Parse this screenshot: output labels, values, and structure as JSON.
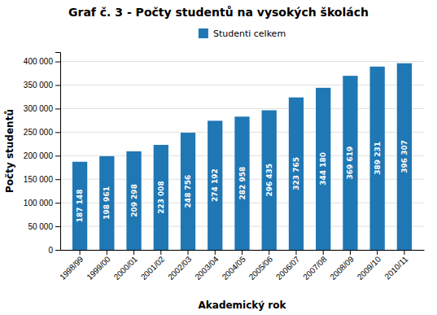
{
  "chart_data": {
    "type": "bar",
    "title": "Graf č. 3 - Počty studentů na vysokých školách",
    "x_label": "Akademický rok",
    "y_label": "Počty studentů",
    "categories": [
      "1998/99",
      "1999/00",
      "2000/01",
      "2001/02",
      "2002/03",
      "2003/04",
      "2004/05",
      "2005/06",
      "2006/07",
      "2007/08",
      "2008/09",
      "2009/10",
      "2010/11"
    ],
    "series": [
      {
        "name": "Studenti celkem",
        "values": [
          187148,
          198961,
          209298,
          223008,
          248756,
          274192,
          282958,
          296435,
          323765,
          344180,
          369619,
          389231,
          396307
        ],
        "value_labels": [
          "187 148",
          "198 961",
          "209 298",
          "223 008",
          "248 756",
          "274 192",
          "282 958",
          "296 435",
          "323 765",
          "344 180",
          "369 619",
          "389 231",
          "396 307"
        ]
      }
    ],
    "ylim": [
      0,
      420000
    ],
    "yticks": [
      0,
      {
        "value": 50000,
        "label": "50 000"
      },
      {
        "value": 100000,
        "label": "100 000"
      },
      {
        "value": 150000,
        "label": "150 000"
      },
      {
        "value": 200000,
        "label": "200 000"
      },
      {
        "value": 250000,
        "label": "250 000"
      },
      {
        "value": 300000,
        "label": "300 000"
      },
      {
        "value": 350000,
        "label": "350 000"
      },
      {
        "value": 400000,
        "label": "400 000"
      }
    ],
    "grid": true,
    "legend": "top",
    "data_labels": true
  }
}
